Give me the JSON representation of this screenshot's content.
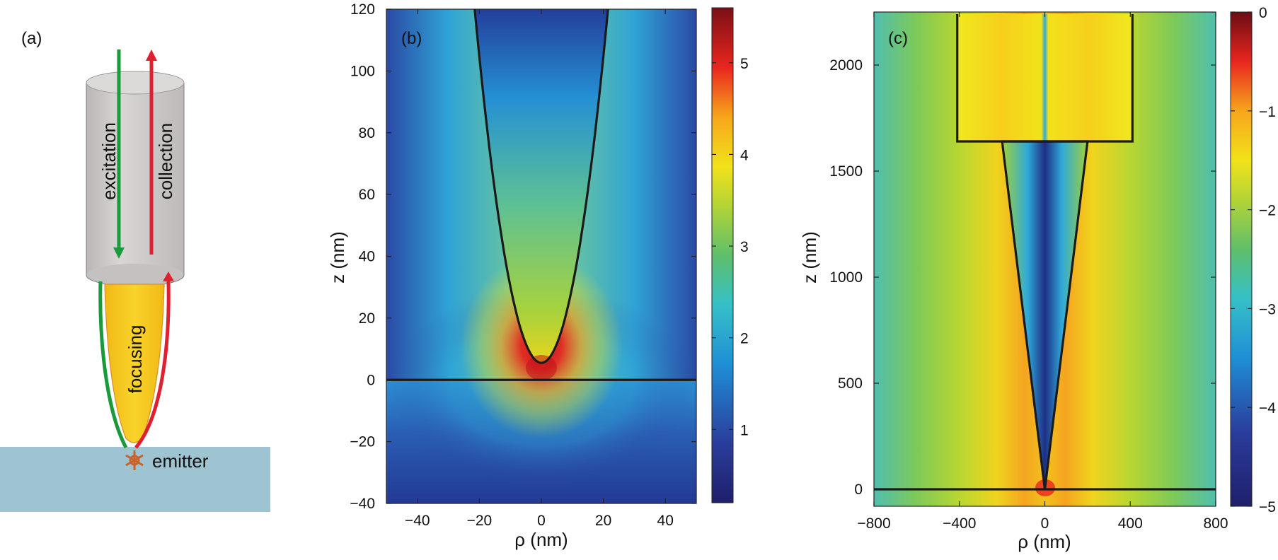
{
  "panel_a": {
    "label": "(a)",
    "arrow_down_text": "excitation",
    "arrow_up_text": "collection",
    "tip_text": "focusing",
    "emitter_text": "emitter",
    "colors": {
      "excitation": "#1a9a3a",
      "collection": "#e0202e",
      "fiber": "#cfcccb",
      "tip": "#f7c418",
      "substrate": "#9fc4d1",
      "emitter": "#c8622a"
    }
  },
  "chart_data": [
    {
      "type": "heatmap",
      "label": "(b)",
      "xlabel": "ρ (nm)",
      "ylabel": "z (nm)",
      "xlim": [
        -50,
        50
      ],
      "ylim": [
        -40,
        120
      ],
      "xticks": [
        -40,
        -20,
        0,
        20,
        40
      ],
      "xtick_labels": [
        "−40",
        "−20",
        "0",
        "20",
        "40"
      ],
      "yticks": [
        -40,
        -20,
        0,
        20,
        40,
        60,
        80,
        100,
        120
      ],
      "ytick_labels": [
        "−40",
        "−20",
        "0",
        "20",
        "40",
        "60",
        "80",
        "100",
        "120"
      ],
      "colorbar": {
        "range": [
          0.2,
          5.6
        ],
        "ticks": [
          1,
          2,
          3,
          4,
          5
        ],
        "tick_labels": [
          "1",
          "2",
          "3",
          "4",
          "5"
        ]
      },
      "geometry": {
        "tip_apex_z": 5.5,
        "tip_halfwidth_at_top": 21.5,
        "z_top": 120,
        "surface_z": 0
      }
    },
    {
      "type": "heatmap",
      "label": "(c)",
      "xlabel": "ρ (nm)",
      "ylabel": "z (nm)",
      "xlim": [
        -800,
        800
      ],
      "ylim": [
        -80,
        2250
      ],
      "xticks": [
        -800,
        -400,
        0,
        400,
        800
      ],
      "xtick_labels": [
        "−800",
        "−400",
        "0",
        "400",
        "800"
      ],
      "yticks": [
        0,
        500,
        1000,
        1500,
        2000
      ],
      "ytick_labels": [
        "0",
        "500",
        "1000",
        "1500",
        "2000"
      ],
      "colorbar": {
        "range": [
          -5,
          0
        ],
        "ticks": [
          -5,
          -4,
          -3,
          -2,
          -1,
          0
        ],
        "tick_labels": [
          "−5",
          "−4",
          "−3",
          "−2",
          "−1",
          "0"
        ]
      },
      "geometry": {
        "cone_top_z": 1640,
        "cone_top_halfwidth": 200,
        "fiber_halfwidth": 410,
        "fiber_top_z": 2240,
        "surface_z": 0
      }
    }
  ]
}
